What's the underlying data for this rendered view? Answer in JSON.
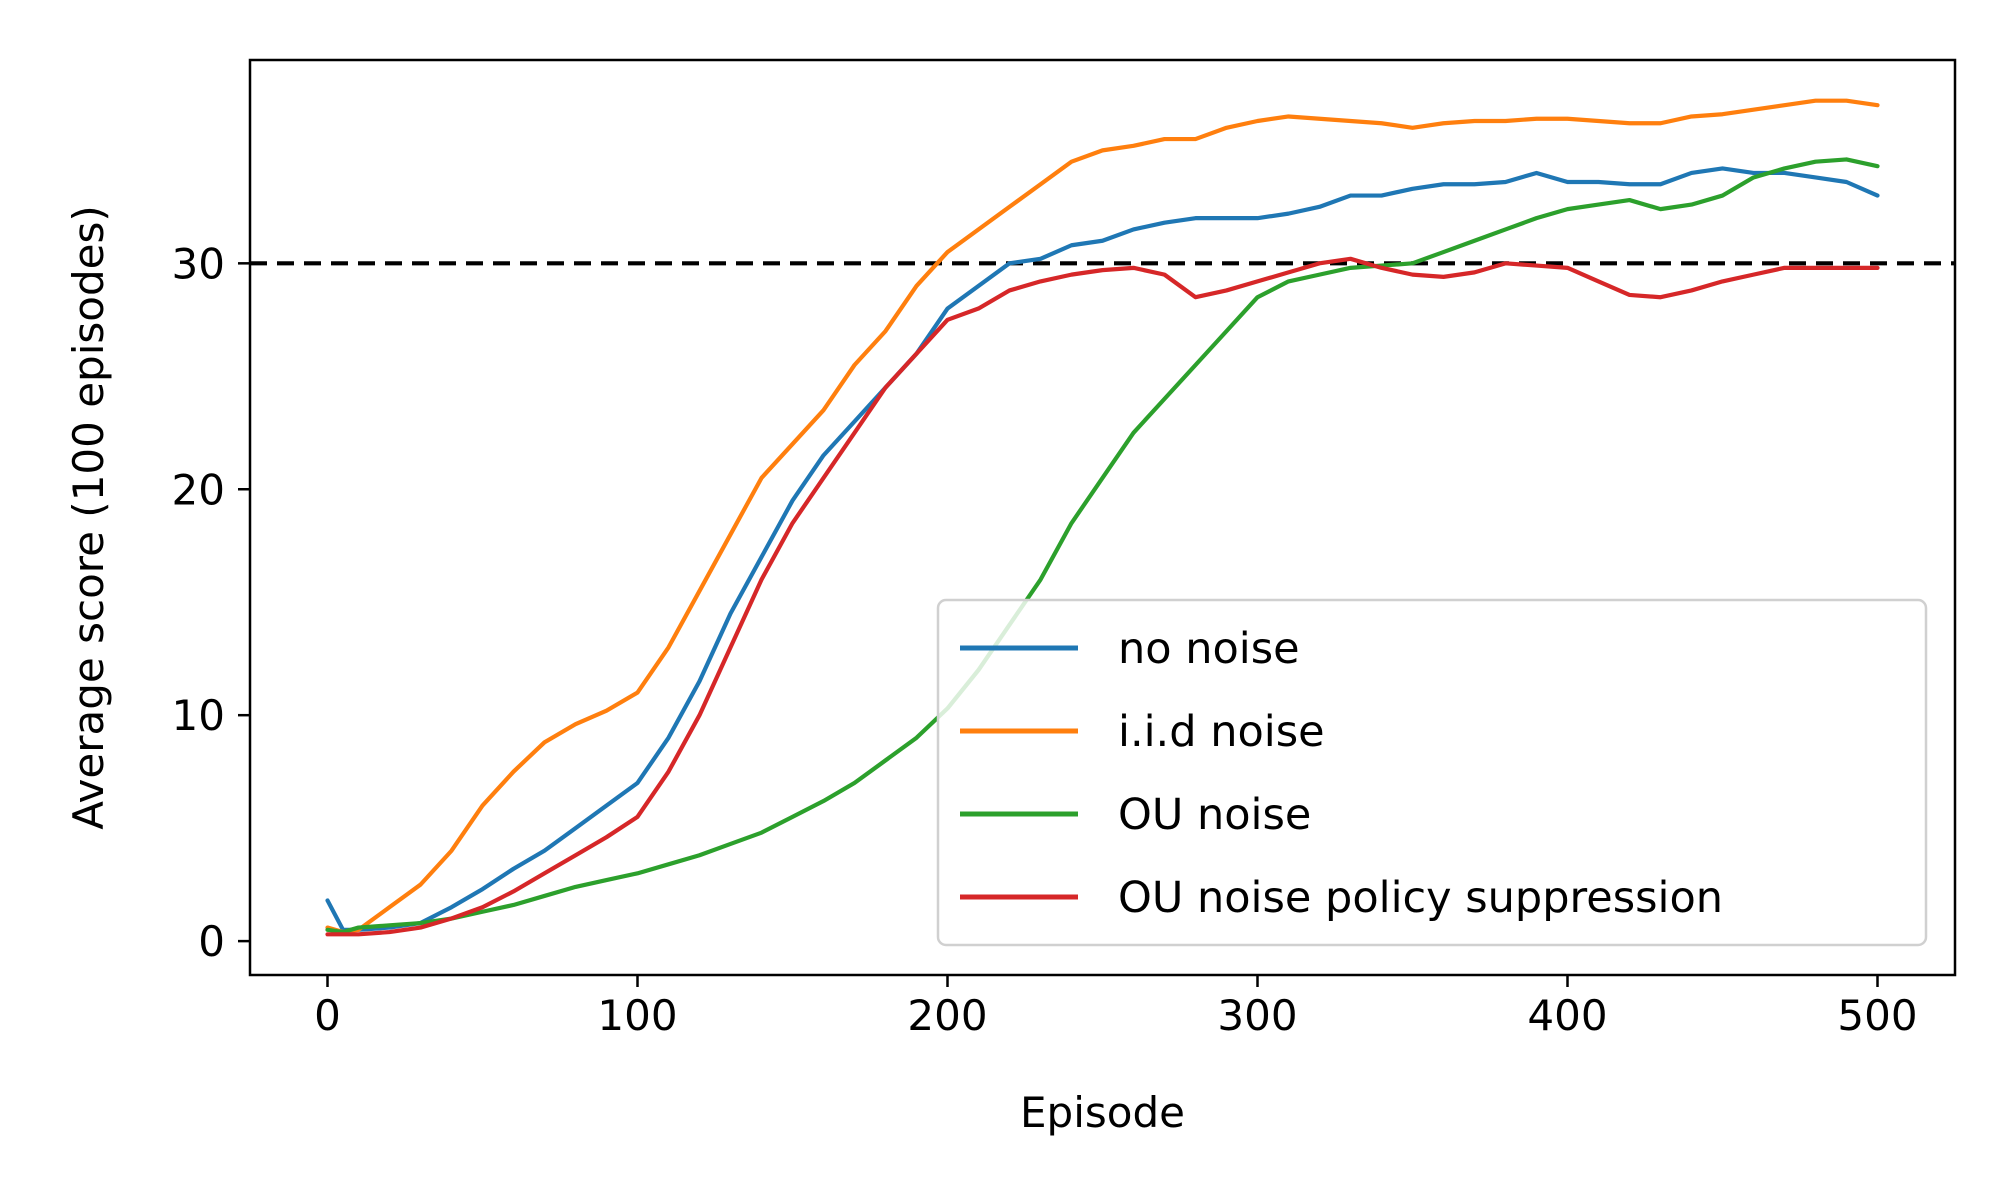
{
  "chart_data": {
    "type": "line",
    "title": "",
    "xlabel": "Episode",
    "ylabel": "Average score (100 episodes)",
    "xlim": [
      -25,
      525
    ],
    "ylim": [
      -1.5,
      39
    ],
    "xticks": [
      0,
      100,
      200,
      300,
      400,
      500
    ],
    "yticks": [
      0,
      10,
      20,
      30
    ],
    "xtick_labels": [
      "0",
      "100",
      "200",
      "300",
      "400",
      "500"
    ],
    "ytick_labels": [
      "0",
      "10",
      "20",
      "30"
    ],
    "grid": false,
    "legend_position": "lower-right",
    "threshold": {
      "y": 30,
      "style": "dashed",
      "color": "#000000"
    },
    "series": [
      {
        "name": "no noise",
        "color": "#1f77b4",
        "x": [
          0,
          5,
          10,
          20,
          30,
          40,
          50,
          60,
          70,
          80,
          90,
          100,
          110,
          120,
          130,
          140,
          150,
          160,
          170,
          180,
          190,
          200,
          210,
          220,
          230,
          240,
          250,
          260,
          270,
          280,
          290,
          300,
          310,
          320,
          330,
          340,
          350,
          360,
          370,
          380,
          390,
          400,
          410,
          420,
          430,
          440,
          450,
          460,
          470,
          480,
          490,
          500
        ],
        "y": [
          1.8,
          0.5,
          0.5,
          0.6,
          0.8,
          1.5,
          2.3,
          3.2,
          4.0,
          5.0,
          6.0,
          7.0,
          9.0,
          11.5,
          14.5,
          17.0,
          19.5,
          21.5,
          23.0,
          24.5,
          26.0,
          28.0,
          29.0,
          30.0,
          30.2,
          30.8,
          31.0,
          31.5,
          31.8,
          32.0,
          32.0,
          32.0,
          32.2,
          32.5,
          33.0,
          33.0,
          33.3,
          33.5,
          33.5,
          33.6,
          34.0,
          33.6,
          33.6,
          33.5,
          33.5,
          34.0,
          34.2,
          34.0,
          34.0,
          33.8,
          33.6,
          33.0
        ]
      },
      {
        "name": "i.i.d noise",
        "color": "#ff7f0e",
        "x": [
          0,
          5,
          10,
          20,
          30,
          40,
          50,
          60,
          70,
          80,
          90,
          100,
          110,
          120,
          130,
          140,
          150,
          160,
          170,
          180,
          190,
          200,
          210,
          220,
          230,
          240,
          250,
          260,
          270,
          280,
          290,
          300,
          310,
          320,
          330,
          340,
          350,
          360,
          370,
          380,
          390,
          400,
          410,
          420,
          430,
          440,
          450,
          460,
          470,
          480,
          490,
          500
        ],
        "y": [
          0.6,
          0.4,
          0.5,
          1.5,
          2.5,
          4.0,
          6.0,
          7.5,
          8.8,
          9.6,
          10.2,
          11.0,
          13.0,
          15.5,
          18.0,
          20.5,
          22.0,
          23.5,
          25.5,
          27.0,
          29.0,
          30.5,
          31.5,
          32.5,
          33.5,
          34.5,
          35.0,
          35.2,
          35.5,
          35.5,
          36.0,
          36.3,
          36.5,
          36.4,
          36.3,
          36.2,
          36.0,
          36.2,
          36.3,
          36.3,
          36.4,
          36.4,
          36.3,
          36.2,
          36.2,
          36.5,
          36.6,
          36.8,
          37.0,
          37.2,
          37.2,
          37.0
        ]
      },
      {
        "name": "OU noise",
        "color": "#2ca02c",
        "x": [
          0,
          5,
          10,
          20,
          30,
          40,
          50,
          60,
          70,
          80,
          90,
          100,
          110,
          120,
          130,
          140,
          150,
          160,
          170,
          180,
          190,
          200,
          210,
          220,
          230,
          240,
          250,
          260,
          270,
          280,
          290,
          300,
          310,
          320,
          330,
          340,
          350,
          360,
          370,
          380,
          390,
          400,
          410,
          420,
          430,
          440,
          450,
          460,
          470,
          480,
          490,
          500
        ],
        "y": [
          0.5,
          0.4,
          0.6,
          0.7,
          0.8,
          1.0,
          1.3,
          1.6,
          2.0,
          2.4,
          2.7,
          3.0,
          3.4,
          3.8,
          4.3,
          4.8,
          5.5,
          6.2,
          7.0,
          8.0,
          9.0,
          10.3,
          12.0,
          14.0,
          16.0,
          18.5,
          20.5,
          22.5,
          24.0,
          25.5,
          27.0,
          28.5,
          29.2,
          29.5,
          29.8,
          29.9,
          30.0,
          30.5,
          31.0,
          31.5,
          32.0,
          32.4,
          32.6,
          32.8,
          32.4,
          32.6,
          33.0,
          33.8,
          34.2,
          34.5,
          34.6,
          34.3
        ]
      },
      {
        "name": "OU noise policy suppression",
        "color": "#d62728",
        "x": [
          0,
          5,
          10,
          20,
          30,
          40,
          50,
          60,
          70,
          80,
          90,
          100,
          110,
          120,
          130,
          140,
          150,
          160,
          170,
          180,
          190,
          200,
          210,
          220,
          230,
          240,
          250,
          260,
          270,
          280,
          290,
          300,
          310,
          320,
          330,
          340,
          350,
          360,
          370,
          380,
          390,
          400,
          410,
          420,
          430,
          440,
          450,
          460,
          470,
          480,
          490,
          500
        ],
        "y": [
          0.3,
          0.3,
          0.3,
          0.4,
          0.6,
          1.0,
          1.5,
          2.2,
          3.0,
          3.8,
          4.6,
          5.5,
          7.5,
          10.0,
          13.0,
          16.0,
          18.5,
          20.5,
          22.5,
          24.5,
          26.0,
          27.5,
          28.0,
          28.8,
          29.2,
          29.5,
          29.7,
          29.8,
          29.5,
          28.5,
          28.8,
          29.2,
          29.6,
          30.0,
          30.2,
          29.8,
          29.5,
          29.4,
          29.6,
          30.0,
          29.9,
          29.8,
          29.2,
          28.6,
          28.5,
          28.8,
          29.2,
          29.5,
          29.8,
          29.8,
          29.8,
          29.8
        ]
      }
    ]
  }
}
